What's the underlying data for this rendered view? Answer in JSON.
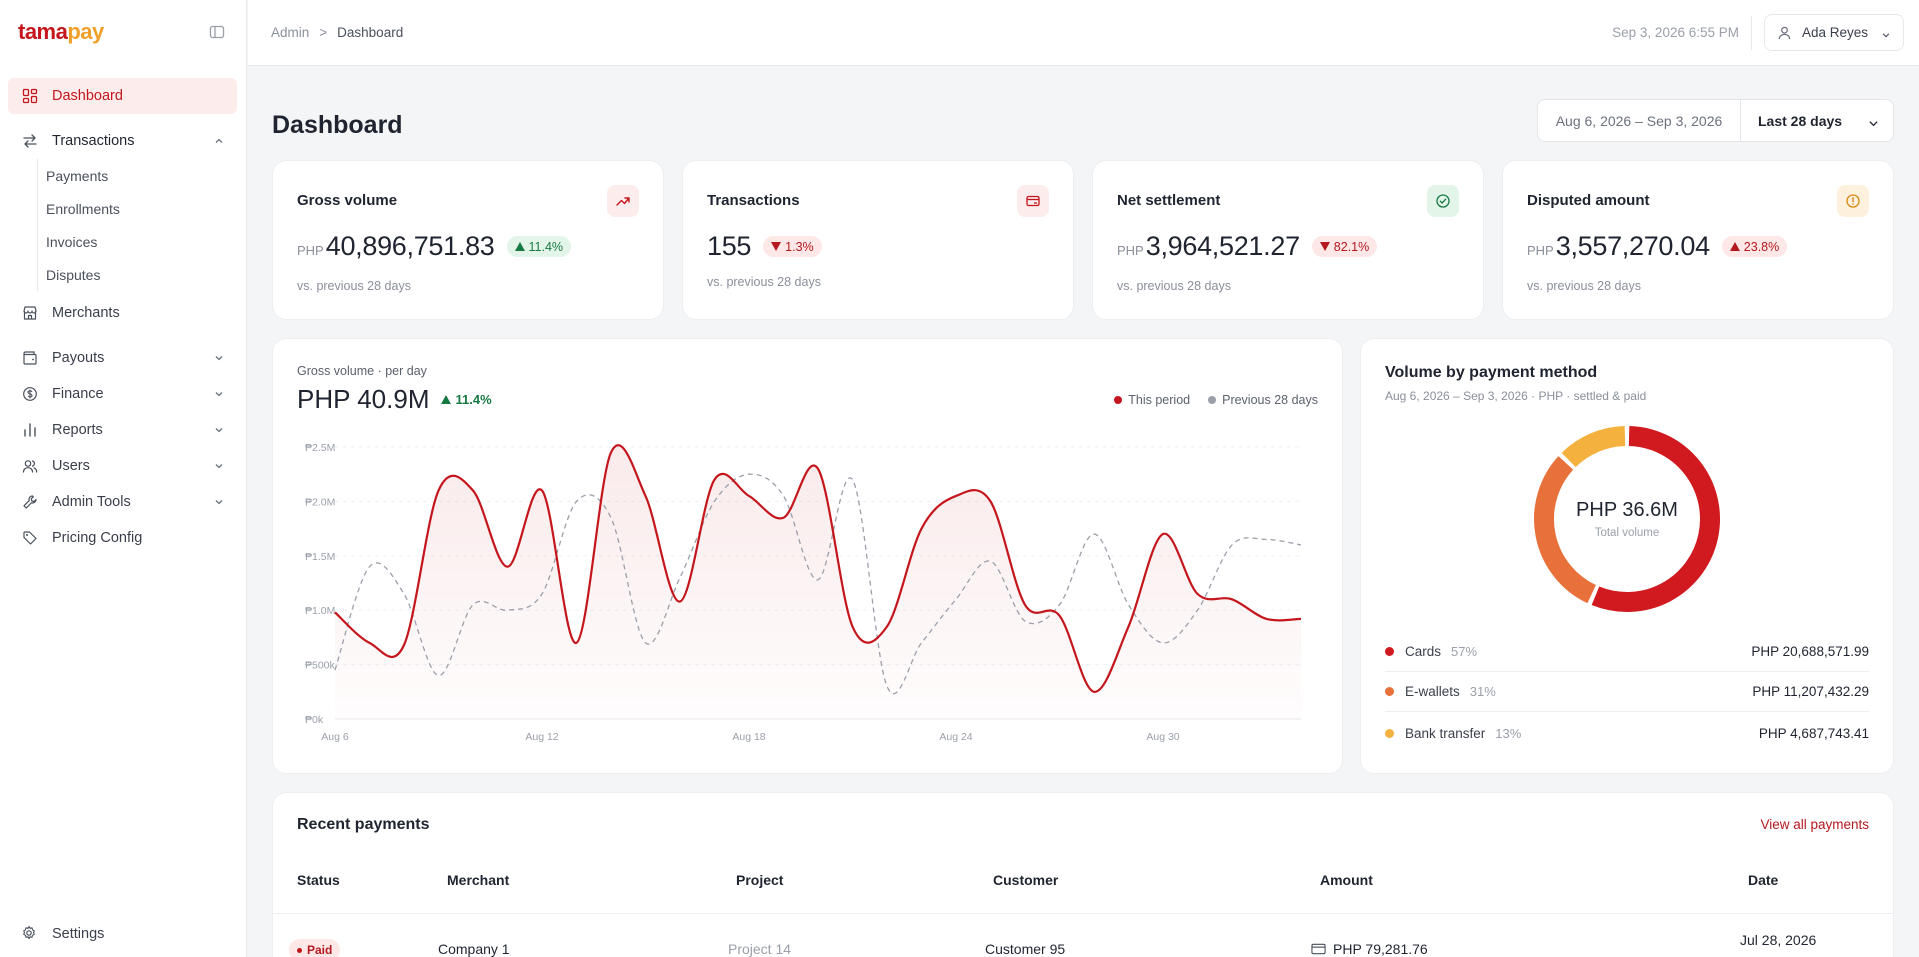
{
  "brand": {
    "logo_part1": "tama",
    "logo_part2": "pay"
  },
  "sidebar": {
    "dashboard": "Dashboard",
    "transactions": "Transactions",
    "transactions_sub": [
      "Payments",
      "Enrollments",
      "Invoices",
      "Disputes"
    ],
    "merchants": "Merchants",
    "payouts": "Payouts",
    "finance": "Finance",
    "reports": "Reports",
    "users": "Users",
    "admin_tools": "Admin Tools",
    "pricing_config": "Pricing Config",
    "settings": "Settings"
  },
  "topbar": {
    "crumb_root": "Admin",
    "crumb_sep": ">",
    "crumb_current": "Dashboard",
    "datetime": "Sep 3, 2026 6:55 PM",
    "user_name": "Ada Reyes"
  },
  "header": {
    "title": "Dashboard",
    "range_dates": "Aug 6, 2026 – Sep 3, 2026",
    "range_preset": "Last 28 days"
  },
  "kpis": {
    "gross": {
      "title": "Gross volume",
      "currency": "PHP",
      "value": "40,896,751.83",
      "change": "11.4%",
      "direction": "up",
      "sub": "vs. previous 28 days"
    },
    "transactions": {
      "title": "Transactions",
      "currency": "",
      "value": "155",
      "change": "1.3%",
      "direction": "down",
      "sub": "vs. previous 28 days"
    },
    "net": {
      "title": "Net settlement",
      "currency": "PHP",
      "value": "3,964,521.27",
      "change": "82.1%",
      "direction": "down",
      "sub": "vs. previous 28 days"
    },
    "disputed": {
      "title": "Disputed amount",
      "currency": "PHP",
      "value": "3,557,270.04",
      "change": "23.8%",
      "direction": "up",
      "sub": "vs. previous 28 days"
    }
  },
  "gross_chart": {
    "label": "Gross volume · per day",
    "total": "PHP 40.9M",
    "change": "11.4%",
    "legend_current": "This period",
    "legend_previous": "Previous 28 days"
  },
  "chart_data": {
    "type": "line",
    "title": "Gross volume · per day",
    "x": [
      "Aug 6",
      "Aug 7",
      "Aug 8",
      "Aug 9",
      "Aug 10",
      "Aug 11",
      "Aug 12",
      "Aug 13",
      "Aug 14",
      "Aug 15",
      "Aug 16",
      "Aug 17",
      "Aug 18",
      "Aug 19",
      "Aug 20",
      "Aug 21",
      "Aug 22",
      "Aug 23",
      "Aug 24",
      "Aug 25",
      "Aug 26",
      "Aug 27",
      "Aug 28",
      "Aug 29",
      "Aug 30",
      "Aug 31",
      "Sep 1",
      "Sep 2",
      "Sep 3"
    ],
    "x_ticks": [
      "Aug 6",
      "Aug 12",
      "Aug 18",
      "Aug 24",
      "Aug 30"
    ],
    "y_ticks": [
      "₱0k",
      "₱500k",
      "₱1.0M",
      "₱1.5M",
      "₱2.0M",
      "₱2.5M"
    ],
    "ylim": [
      0,
      2500000
    ],
    "series": [
      {
        "name": "This period",
        "color": "#c4161c",
        "values": [
          980000,
          700000,
          680000,
          2100000,
          2100000,
          1400000,
          2100000,
          700000,
          2450000,
          2050000,
          1080000,
          2200000,
          2050000,
          1850000,
          2300000,
          850000,
          850000,
          1750000,
          2050000,
          2000000,
          1050000,
          950000,
          250000,
          850000,
          1700000,
          1150000,
          1100000,
          920000,
          920000
        ]
      },
      {
        "name": "Previous 28 days",
        "color": "#9a9fa9",
        "values": [
          450000,
          1400000,
          1150000,
          400000,
          1050000,
          1000000,
          1150000,
          2000000,
          1850000,
          700000,
          1300000,
          2000000,
          2250000,
          2050000,
          1280000,
          2200000,
          300000,
          700000,
          1100000,
          1450000,
          900000,
          1050000,
          1700000,
          1050000,
          700000,
          1000000,
          1600000,
          1650000,
          1600000
        ]
      }
    ]
  },
  "payment_method": {
    "title": "Volume by payment method",
    "subtitle": "Aug 6, 2026 – Sep 3, 2026 · PHP · settled & paid",
    "total": "PHP 36.6M",
    "total_label": "Total volume",
    "items": [
      {
        "name": "Cards",
        "pct": "57%",
        "share": 0.566,
        "amount": "PHP 20,688,571.99",
        "color": "#d01a1f"
      },
      {
        "name": "E-wallets",
        "pct": "31%",
        "share": 0.306,
        "amount": "PHP 11,207,432.29",
        "color": "#e8703a"
      },
      {
        "name": "Bank transfer",
        "pct": "13%",
        "share": 0.128,
        "amount": "PHP 4,687,743.41",
        "color": "#f5b13d"
      }
    ]
  },
  "recent": {
    "title": "Recent payments",
    "view_all": "View all payments",
    "columns": [
      "Status",
      "Merchant",
      "Project",
      "Customer",
      "Amount",
      "Date"
    ],
    "rows": [
      {
        "status": "Paid",
        "merchant": "Company 1",
        "project": "Project 14",
        "customer": "Customer 95",
        "amount": "PHP 79,281.76",
        "date": "Jul 28, 2026"
      }
    ]
  },
  "colors": {
    "accent": "#c4161c",
    "brand_orange": "#f0a02a"
  }
}
